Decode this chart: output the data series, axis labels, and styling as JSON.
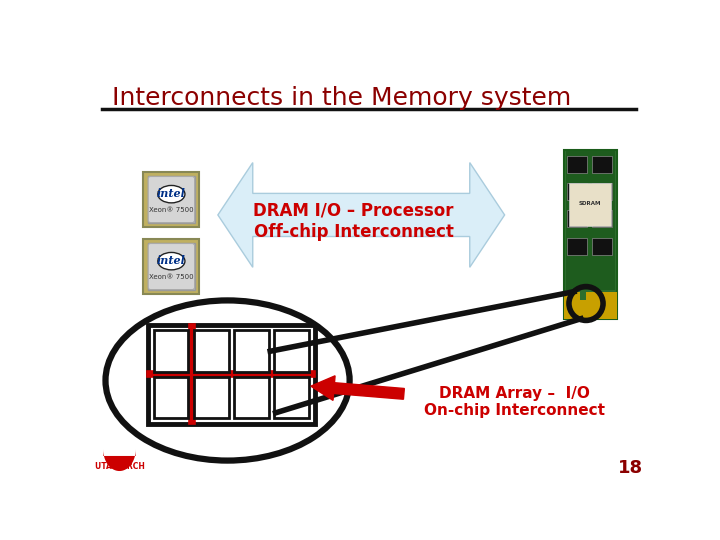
{
  "title": "Interconnects in the Memory system",
  "title_color": "#8B0000",
  "title_fontsize": 18,
  "title_fontweight": "normal",
  "bg_color": "#FFFFFF",
  "separator_color": "#111111",
  "label1": "DRAM I/O – Processor\nOff-chip Interconnect",
  "label1_color": "#CC0000",
  "label1_fontsize": 12,
  "label2": "DRAM Array –  I/O\nOn-chip Interconnect",
  "label2_color": "#CC0000",
  "label2_fontsize": 11,
  "slide_number": "18",
  "slide_number_color": "#8B0000",
  "arrow_fill": "#daeef8",
  "arrow_edge": "#aaccdd",
  "footer_text": "UTAH ARCH",
  "footer_color": "#CC0000",
  "grid_outer_color": "#111111",
  "grid_cell_color": "#111111",
  "red_cross_color": "#CC0000",
  "oval_color": "#111111",
  "black_line_color": "#111111",
  "red_arrow_color": "#CC0000"
}
